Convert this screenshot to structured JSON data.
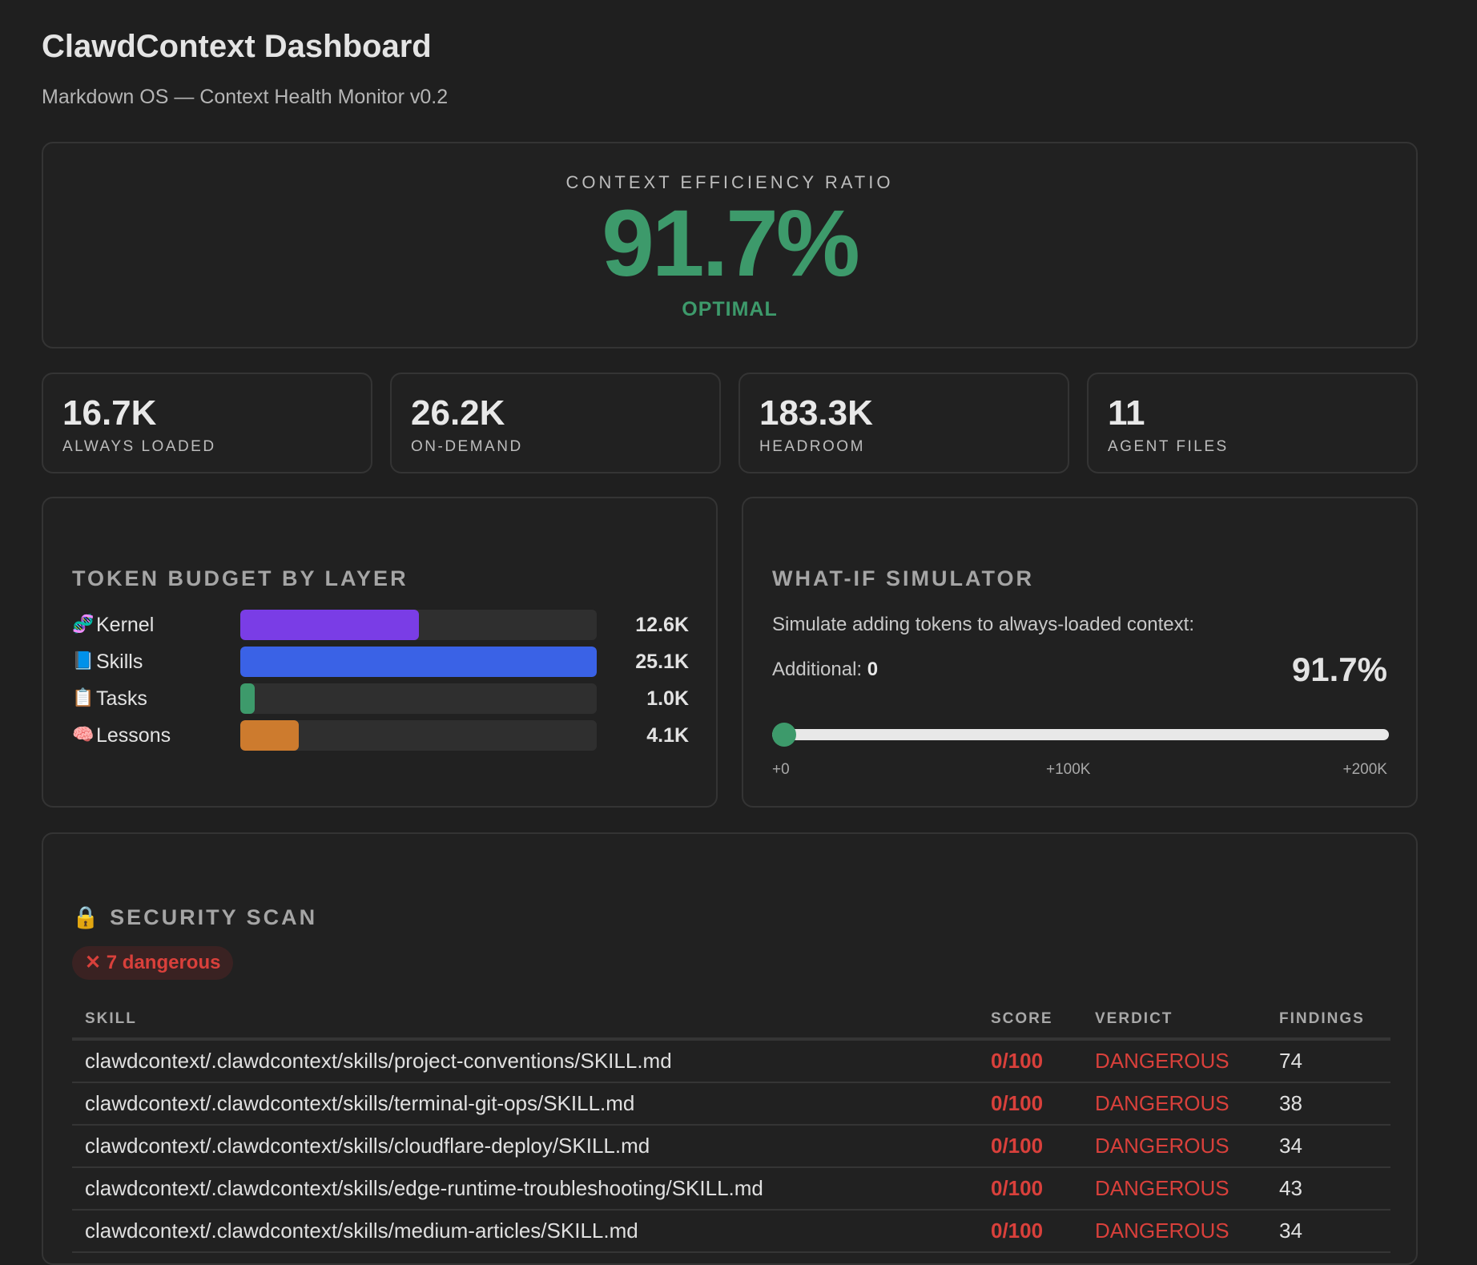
{
  "header": {
    "title": "ClawdContext Dashboard",
    "subtitle": "Markdown OS — Context Health Monitor v0.2"
  },
  "hero": {
    "label": "CONTEXT EFFICIENCY RATIO",
    "value": "91.7%",
    "status": "OPTIMAL",
    "color": "#3d9a6b"
  },
  "stats": [
    {
      "value": "16.7K",
      "label": "ALWAYS LOADED"
    },
    {
      "value": "26.2K",
      "label": "ON-DEMAND"
    },
    {
      "value": "183.3K",
      "label": "HEADROOM"
    },
    {
      "value": "11",
      "label": "AGENT FILES"
    }
  ],
  "budget": {
    "title": "TOKEN BUDGET BY LAYER",
    "max": 25.1,
    "layers": [
      {
        "icon": "🧬",
        "name": "Kernel",
        "value": "12.6K",
        "tokens": 12.6,
        "color": "#7a3de6"
      },
      {
        "icon": "📘",
        "name": "Skills",
        "value": "25.1K",
        "tokens": 25.1,
        "color": "#3a62e6"
      },
      {
        "icon": "📋",
        "name": "Tasks",
        "value": "1.0K",
        "tokens": 1.0,
        "color": "#3d9a6b"
      },
      {
        "icon": "🧠",
        "name": "Lessons",
        "value": "4.1K",
        "tokens": 4.1,
        "color": "#cd7b2e"
      }
    ]
  },
  "simulator": {
    "title": "WHAT-IF SIMULATOR",
    "description": "Simulate adding tokens to always-loaded context:",
    "additional_label": "Additional:",
    "additional_value": "0",
    "result": "91.7%",
    "slider_value": 0,
    "ticks": [
      "+0",
      "+100K",
      "+200K"
    ]
  },
  "security": {
    "icon": "🔒",
    "title": "SECURITY SCAN",
    "badge": "✕ 7 dangerous",
    "columns": [
      "SKILL",
      "SCORE",
      "VERDICT",
      "FINDINGS"
    ],
    "rows": [
      {
        "skill": "clawdcontext/.clawdcontext/skills/project-conventions/SKILL.md",
        "score": "0/100",
        "verdict": "DANGEROUS",
        "findings": "74"
      },
      {
        "skill": "clawdcontext/.clawdcontext/skills/terminal-git-ops/SKILL.md",
        "score": "0/100",
        "verdict": "DANGEROUS",
        "findings": "38"
      },
      {
        "skill": "clawdcontext/.clawdcontext/skills/cloudflare-deploy/SKILL.md",
        "score": "0/100",
        "verdict": "DANGEROUS",
        "findings": "34"
      },
      {
        "skill": "clawdcontext/.clawdcontext/skills/edge-runtime-troubleshooting/SKILL.md",
        "score": "0/100",
        "verdict": "DANGEROUS",
        "findings": "43"
      },
      {
        "skill": "clawdcontext/.clawdcontext/skills/medium-articles/SKILL.md",
        "score": "0/100",
        "verdict": "DANGEROUS",
        "findings": "34"
      }
    ]
  }
}
